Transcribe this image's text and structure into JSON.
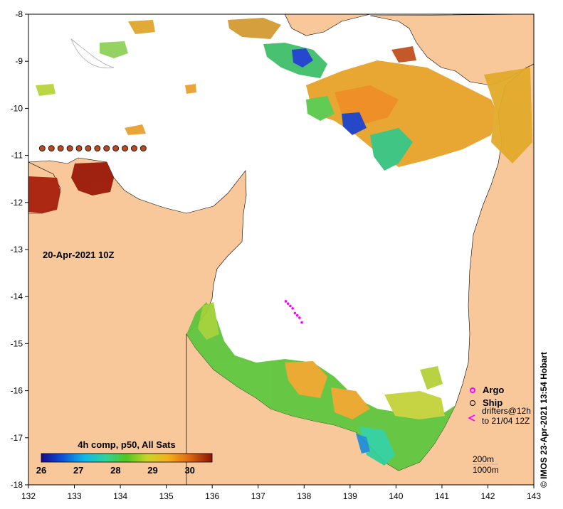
{
  "map": {
    "date_label": "20-Apr-2021 10Z",
    "colorbar_title": "4h comp, p50, All Sats",
    "colorbar_ticks": [
      "26",
      "27",
      "28",
      "29",
      "30"
    ],
    "colorbar_range": [
      26,
      30.6
    ],
    "credit": "© IMOS 23-Apr-2021 13:54 Hobart",
    "x_axis": {
      "min": 132,
      "max": 143,
      "ticks": [
        "132",
        "133",
        "134",
        "135",
        "136",
        "137",
        "138",
        "139",
        "140",
        "141",
        "142",
        "143"
      ]
    },
    "y_axis": {
      "min": -18,
      "max": -8,
      "ticks": [
        "-8",
        "-9",
        "-10",
        "-11",
        "-12",
        "-13",
        "-14",
        "-15",
        "-16",
        "-17",
        "-18"
      ]
    },
    "legend": {
      "argo": "Argo",
      "ship": "Ship",
      "drifters_line1": "drifters@12h",
      "drifters_line2": "to 21/04 12Z",
      "depth_200": "200m",
      "depth_1000": "1000m"
    },
    "colors": {
      "land": "#f9c89a",
      "ocean_nodata": "#ffffff",
      "argo": "#ff00ff",
      "drifter": "#ff00ff"
    },
    "drifter_track": [
      [
        137.6,
        -14.1
      ],
      [
        137.65,
        -14.15
      ],
      [
        137.7,
        -14.2
      ],
      [
        137.75,
        -14.25
      ],
      [
        137.8,
        -14.35
      ],
      [
        137.85,
        -14.4
      ],
      [
        137.9,
        -14.45
      ],
      [
        137.95,
        -14.55
      ]
    ],
    "ship_track": [
      [
        132.3,
        -10.85
      ],
      [
        132.5,
        -10.85
      ],
      [
        132.7,
        -10.85
      ],
      [
        132.9,
        -10.85
      ],
      [
        133.1,
        -10.85
      ],
      [
        133.3,
        -10.85
      ],
      [
        133.5,
        -10.85
      ],
      [
        133.7,
        -10.85
      ],
      [
        133.9,
        -10.85
      ],
      [
        134.1,
        -10.85
      ],
      [
        134.3,
        -10.85
      ],
      [
        134.5,
        -10.85
      ]
    ]
  }
}
